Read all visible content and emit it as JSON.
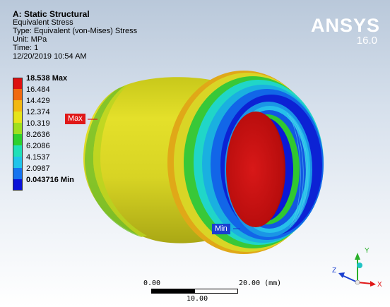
{
  "info": {
    "title": "A: Static Structural",
    "result": "Equivalent Stress",
    "type": "Type: Equivalent (von-Mises) Stress",
    "unit": "Unit: MPa",
    "time": "Time: 1",
    "date": "12/20/2019 10:54 AM"
  },
  "brand": {
    "name": "ANSYS",
    "version": "16.0"
  },
  "legend": [
    {
      "label": "18.538 Max",
      "color": "#dd1010",
      "bold": true
    },
    {
      "label": "16.484",
      "color": "#f06a10",
      "bold": false
    },
    {
      "label": "14.429",
      "color": "#f2b812",
      "bold": false
    },
    {
      "label": "12.374",
      "color": "#e6e41a",
      "bold": false
    },
    {
      "label": "10.319",
      "color": "#9fe01e",
      "bold": false
    },
    {
      "label": "8.2636",
      "color": "#2ed12e",
      "bold": false
    },
    {
      "label": "6.2086",
      "color": "#20e0b8",
      "bold": false
    },
    {
      "label": "4.1537",
      "color": "#20c4ea",
      "bold": false
    },
    {
      "label": "2.0987",
      "color": "#1674f0",
      "bold": false
    },
    {
      "label": "0.043716 Min",
      "color": "#0a12d8",
      "bold": true
    }
  ],
  "probes": {
    "max_label": "Max",
    "min_label": "Min"
  },
  "scale_bar": {
    "start": "0.00",
    "end": "20.00 (mm)",
    "mid": "10.00"
  },
  "triad": {
    "x": "X",
    "y": "Y",
    "z": "Z"
  },
  "colors": {
    "max_tag": "#e01818",
    "min_tag": "#1a3fd0",
    "body": "#e2de28"
  }
}
